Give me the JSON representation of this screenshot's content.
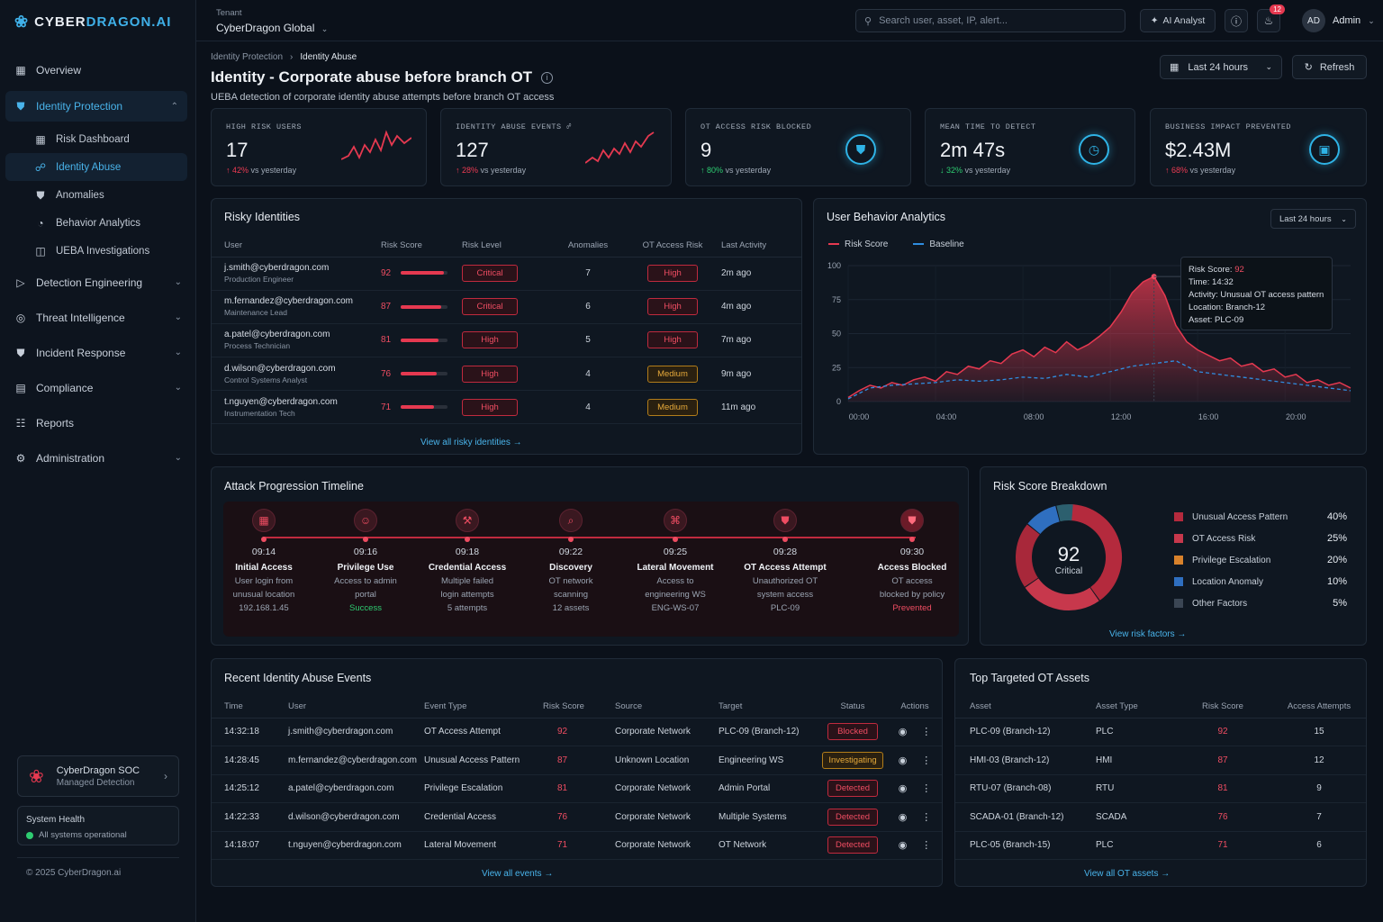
{
  "app": {
    "brand_a": "CYBER",
    "brand_b": "DRAGON.AI"
  },
  "sidebar": {
    "items": [
      {
        "label": "Overview",
        "icon": "grid-icon"
      },
      {
        "label": "Identity Protection",
        "icon": "shield-icon"
      },
      {
        "label": "Detection Engineering",
        "icon": "flag-icon"
      },
      {
        "label": "Threat Intelligence",
        "icon": "target-icon"
      },
      {
        "label": "Incident Response",
        "icon": "shield-alert-icon"
      },
      {
        "label": "Compliance",
        "icon": "clipboard-icon"
      },
      {
        "label": "Reports",
        "icon": "document-icon"
      },
      {
        "label": "Administration",
        "icon": "gear-icon"
      }
    ],
    "sub_items": [
      {
        "label": "Risk Dashboard"
      },
      {
        "label": "Identity Abuse"
      },
      {
        "label": "Anomalies"
      },
      {
        "label": "Behavior Analytics"
      },
      {
        "label": "UEBA Investigations"
      }
    ],
    "soc": {
      "title": "CyberDragon SOC",
      "subtitle": "Managed Detection"
    },
    "health": {
      "title": "System Health",
      "status": "All systems operational"
    },
    "copyright": "© 2025 CyberDragon.ai"
  },
  "topbar": {
    "tenant_label": "Tenant",
    "tenant_value": "CyberDragon Global",
    "search_placeholder": "Search user, asset, IP, alert...",
    "ai_label": "AI Analyst",
    "notif_count": "12",
    "user_initials": "AD",
    "user_name": "Admin"
  },
  "page": {
    "crumb_parent": "Identity Protection",
    "crumb_current": "Identity Abuse",
    "title": "Identity - Corporate abuse before branch OT",
    "subtitle": "UEBA detection of corporate identity abuse attempts before branch OT access",
    "range": "Last 24 hours",
    "refresh": "Refresh"
  },
  "kpis": [
    {
      "label": "HIGH RISK USERS",
      "value": "17",
      "change": "42%",
      "suffix": "vs yesterday",
      "dir": "up"
    },
    {
      "label": "IDENTITY ABUSE EVENTS",
      "value": "127",
      "change": "28%",
      "suffix": "vs yesterday",
      "dir": "up"
    },
    {
      "label": "OT ACCESS RISK BLOCKED",
      "value": "9",
      "change": "80%",
      "suffix": "vs yesterday",
      "dir": "up-good"
    },
    {
      "label": "MEAN TIME TO DETECT",
      "value": "2m 47s",
      "change": "32%",
      "suffix": "vs yesterday",
      "dir": "down-good"
    },
    {
      "label": "BUSINESS IMPACT PREVENTED",
      "value": "$2.43M",
      "change": "68%",
      "suffix": "vs yesterday",
      "dir": "up"
    }
  ],
  "risky": {
    "title": "Risky Identities",
    "columns": [
      "User",
      "Risk Score",
      "Risk Level",
      "Anomalies",
      "OT Access Risk",
      "Last Activity"
    ],
    "rows": [
      {
        "email": "j.smith@cyberdragon.com",
        "role": "Production Engineer",
        "score": "92",
        "level": "Critical",
        "anomalies": "7",
        "ot": "High",
        "last": "2m ago"
      },
      {
        "email": "m.fernandez@cyberdragon.com",
        "role": "Maintenance Lead",
        "score": "87",
        "level": "Critical",
        "anomalies": "6",
        "ot": "High",
        "last": "4m ago"
      },
      {
        "email": "a.patel@cyberdragon.com",
        "role": "Process Technician",
        "score": "81",
        "level": "High",
        "anomalies": "5",
        "ot": "High",
        "last": "7m ago"
      },
      {
        "email": "d.wilson@cyberdragon.com",
        "role": "Control Systems Analyst",
        "score": "76",
        "level": "High",
        "anomalies": "4",
        "ot": "Medium",
        "last": "9m ago"
      },
      {
        "email": "t.nguyen@cyberdragon.com",
        "role": "Instrumentation Tech",
        "score": "71",
        "level": "High",
        "anomalies": "4",
        "ot": "Medium",
        "last": "11m ago"
      }
    ],
    "link": "View all risky identities"
  },
  "uba": {
    "title": "User Behavior Analytics",
    "range": "Last 24 hours",
    "legend_a": "Risk Score",
    "legend_b": "Baseline",
    "tooltip": {
      "score_label": "Risk Score:",
      "score": "92",
      "time": "Time: 14:32",
      "activity": "Activity: Unusual OT access pattern",
      "location": "Location: Branch-12",
      "asset": "Asset: PLC-09"
    }
  },
  "chart_data": {
    "type": "area",
    "x_ticks": [
      "00:00",
      "04:00",
      "08:00",
      "12:00",
      "16:00",
      "20:00"
    ],
    "y_ticks": [
      "0",
      "25",
      "50",
      "75",
      "100"
    ],
    "ylim": [
      0,
      100
    ],
    "xlim": [
      0,
      23
    ],
    "series": [
      {
        "name": "Risk Score",
        "x": [
          0,
          0.5,
          1,
          1.5,
          2,
          2.5,
          3,
          3.5,
          4,
          4.5,
          5,
          5.5,
          6,
          6.5,
          7,
          7.5,
          8,
          8.5,
          9,
          9.5,
          10,
          10.5,
          11,
          11.5,
          12,
          12.5,
          13,
          13.5,
          14,
          14.5,
          15,
          15.5,
          16,
          16.5,
          17,
          17.5,
          18,
          18.5,
          19,
          19.5,
          20,
          20.5,
          21,
          21.5,
          22,
          22.5,
          23
        ],
        "values": [
          3,
          8,
          12,
          10,
          14,
          12,
          16,
          18,
          15,
          22,
          20,
          26,
          24,
          30,
          28,
          35,
          38,
          33,
          40,
          36,
          44,
          38,
          42,
          48,
          55,
          66,
          80,
          88,
          92,
          78,
          56,
          44,
          38,
          34,
          30,
          32,
          26,
          28,
          22,
          24,
          18,
          20,
          14,
          16,
          12,
          14,
          10
        ]
      },
      {
        "name": "Baseline",
        "x": [
          0,
          1,
          2,
          3,
          4,
          5,
          6,
          7,
          8,
          9,
          10,
          11,
          12,
          13,
          14,
          15,
          16,
          17,
          18,
          19,
          20,
          21,
          22,
          23
        ],
        "values": [
          2,
          10,
          12,
          13,
          14,
          16,
          15,
          16,
          18,
          17,
          20,
          18,
          22,
          26,
          28,
          30,
          22,
          20,
          18,
          16,
          14,
          12,
          10,
          8
        ]
      }
    ]
  },
  "timeline": {
    "title": "Attack Progression Timeline",
    "steps": [
      {
        "time": "09:14",
        "name": "Initial Access",
        "d1": "User login from",
        "d2": "unusual location",
        "d3": "192.168.1.45",
        "icon": "calendar-icon",
        "d3class": ""
      },
      {
        "time": "09:16",
        "name": "Privilege Use",
        "d1": "Access to admin",
        "d2": "portal",
        "d3": "Success",
        "icon": "user-icon",
        "d3class": "ok"
      },
      {
        "time": "09:18",
        "name": "Credential Access",
        "d1": "Multiple failed",
        "d2": "login attempts",
        "d3": "5 attempts",
        "icon": "tools-icon",
        "d3class": ""
      },
      {
        "time": "09:22",
        "name": "Discovery",
        "d1": "OT network",
        "d2": "scanning",
        "d3": "12 assets",
        "icon": "search-icon",
        "d3class": ""
      },
      {
        "time": "09:25",
        "name": "Lateral Movement",
        "d1": "Access to",
        "d2": "engineering WS",
        "d3": "ENG-WS-07",
        "icon": "network-icon",
        "d3class": ""
      },
      {
        "time": "09:28",
        "name": "OT Access Attempt",
        "d1": "Unauthorized OT",
        "d2": "system access",
        "d3": "PLC-09",
        "icon": "shield-icon",
        "d3class": ""
      },
      {
        "time": "09:30",
        "name": "Access Blocked",
        "d1": "OT access",
        "d2": "blocked by policy",
        "d3": "Prevented",
        "icon": "shield-block-icon",
        "d3class": "bad"
      }
    ]
  },
  "breakdown": {
    "title": "Risk Score Breakdown",
    "score": "92",
    "level": "Critical",
    "items": [
      {
        "label": "Unusual Access Pattern",
        "pct": "40%",
        "value": 40,
        "color": "#b42a3d"
      },
      {
        "label": "OT Access Risk",
        "pct": "25%",
        "value": 25,
        "color": "#c7384c"
      },
      {
        "label": "Privilege Escalation",
        "pct": "20%",
        "value": 20,
        "color": "#d9822b"
      },
      {
        "label": "Location Anomaly",
        "pct": "10%",
        "value": 10,
        "color": "#2f6fc0"
      },
      {
        "label": "Other Factors",
        "pct": "5%",
        "value": 5,
        "color": "#3b4654"
      }
    ],
    "link": "View risk factors"
  },
  "events": {
    "title": "Recent Identity Abuse Events",
    "columns": [
      "Time",
      "User",
      "Event Type",
      "Risk Score",
      "Source",
      "Target",
      "Status",
      "Actions"
    ],
    "rows": [
      {
        "time": "14:32:18",
        "user": "j.smith@cyberdragon.com",
        "type": "OT Access Attempt",
        "score": "92",
        "source": "Corporate Network",
        "target": "PLC-09 (Branch-12)",
        "status": "Blocked",
        "cls": "crit"
      },
      {
        "time": "14:28:45",
        "user": "m.fernandez@cyberdragon.com",
        "type": "Unusual Access Pattern",
        "score": "87",
        "source": "Unknown Location",
        "target": "Engineering WS",
        "status": "Investigating",
        "cls": "inv"
      },
      {
        "time": "14:25:12",
        "user": "a.patel@cyberdragon.com",
        "type": "Privilege Escalation",
        "score": "81",
        "source": "Corporate Network",
        "target": "Admin Portal",
        "status": "Detected",
        "cls": "crit"
      },
      {
        "time": "14:22:33",
        "user": "d.wilson@cyberdragon.com",
        "type": "Credential Access",
        "score": "76",
        "source": "Corporate Network",
        "target": "Multiple Systems",
        "status": "Detected",
        "cls": "crit"
      },
      {
        "time": "14:18:07",
        "user": "t.nguyen@cyberdragon.com",
        "type": "Lateral Movement",
        "score": "71",
        "source": "Corporate Network",
        "target": "OT Network",
        "status": "Detected",
        "cls": "crit"
      }
    ],
    "link": "View all events"
  },
  "assets": {
    "title": "Top Targeted OT Assets",
    "columns": [
      "Asset",
      "Asset Type",
      "Risk Score",
      "Access Attempts"
    ],
    "rows": [
      {
        "asset": "PLC-09 (Branch-12)",
        "type": "PLC",
        "score": "92",
        "attempts": "15"
      },
      {
        "asset": "HMI-03 (Branch-12)",
        "type": "HMI",
        "score": "87",
        "attempts": "12"
      },
      {
        "asset": "RTU-07 (Branch-08)",
        "type": "RTU",
        "score": "81",
        "attempts": "9"
      },
      {
        "asset": "SCADA-01 (Branch-12)",
        "type": "SCADA",
        "score": "76",
        "attempts": "7"
      },
      {
        "asset": "PLC-05 (Branch-15)",
        "type": "PLC",
        "score": "71",
        "attempts": "6"
      }
    ],
    "link": "View all OT assets"
  }
}
